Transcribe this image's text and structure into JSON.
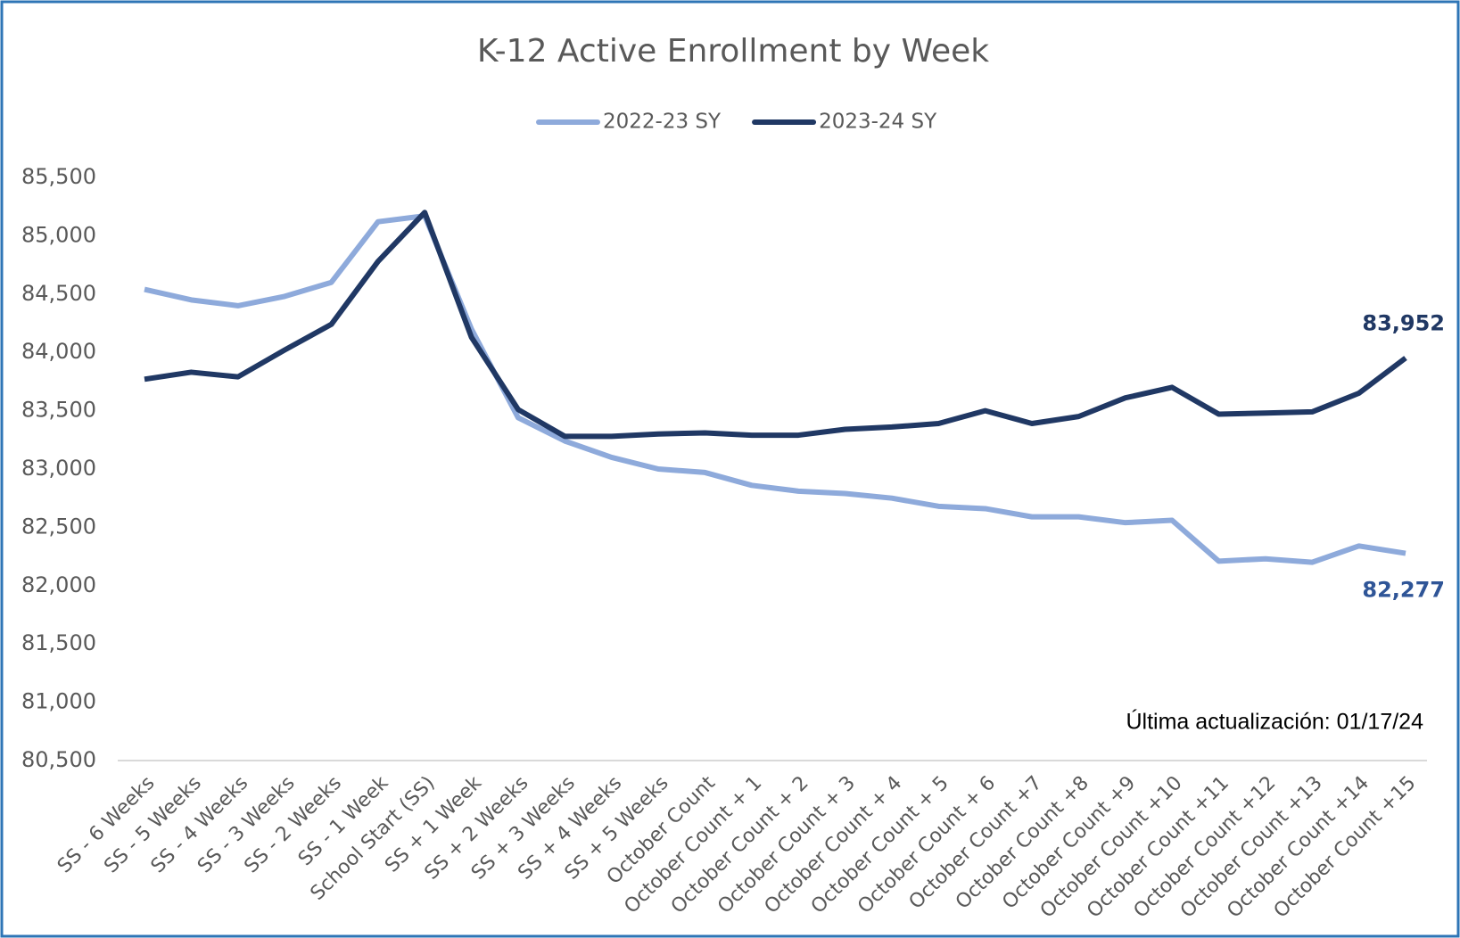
{
  "chart_data": {
    "type": "line",
    "title": "K-12 Active Enrollment by Week",
    "categories": [
      "SS - 6 Weeks",
      "SS - 5 Weeks",
      "SS - 4 Weeks",
      "SS - 3 Weeks",
      "SS - 2 Weeks",
      "SS - 1 Week",
      "School Start (SS)",
      "SS + 1 Week",
      "SS + 2 Weeks",
      "SS + 3 Weeks",
      "SS + 4 Weeks",
      "SS + 5 Weeks",
      "October Count",
      "October Count + 1",
      "October Count + 2",
      "October Count + 3",
      "October Count + 4",
      "October Count + 5",
      "October Count + 6",
      "October Count +7",
      "October Count +8",
      "October Count +9",
      "October Count +10",
      "October Count +11",
      "October Count +12",
      "October Count +13",
      "October Count +14",
      "October Count +15"
    ],
    "series": [
      {
        "name": "2022-23 SY",
        "color": "#8eaadb",
        "label_color": "#2f5597",
        "values": [
          84540,
          84450,
          84400,
          84480,
          84600,
          85120,
          85170,
          84200,
          83440,
          83240,
          83100,
          83000,
          82970,
          82860,
          82810,
          82790,
          82750,
          82680,
          82660,
          82590,
          82590,
          82540,
          82560,
          82210,
          82230,
          82200,
          82340,
          82277
        ],
        "value_labels": [
          null,
          null,
          null,
          null,
          null,
          null,
          null,
          null,
          null,
          null,
          null,
          null,
          null,
          null,
          null,
          null,
          null,
          null,
          null,
          null,
          null,
          null,
          null,
          null,
          null,
          null,
          null,
          "82,277"
        ]
      },
      {
        "name": "2023-24 SY",
        "color": "#203864",
        "label_color": "#203864",
        "values": [
          83770,
          83830,
          83790,
          84020,
          84240,
          84780,
          85200,
          84130,
          83510,
          83280,
          83280,
          83300,
          83310,
          83290,
          83290,
          83340,
          83360,
          83390,
          83500,
          83390,
          83450,
          83610,
          83700,
          83470,
          83480,
          83490,
          83650,
          83952
        ],
        "value_labels": [
          null,
          null,
          null,
          null,
          null,
          null,
          null,
          null,
          null,
          null,
          null,
          null,
          null,
          null,
          null,
          null,
          null,
          null,
          null,
          null,
          null,
          null,
          null,
          null,
          null,
          null,
          null,
          "83,952"
        ]
      }
    ],
    "ylim": [
      80500,
      85500
    ],
    "yticks": [
      {
        "value": 80500,
        "label": "80,500"
      },
      {
        "value": 81000,
        "label": "81,000"
      },
      {
        "value": 81500,
        "label": "81,500"
      },
      {
        "value": 82000,
        "label": "82,000"
      },
      {
        "value": 82500,
        "label": "82,500"
      },
      {
        "value": 83000,
        "label": "83,000"
      },
      {
        "value": 83500,
        "label": "83,500"
      },
      {
        "value": 84000,
        "label": "84,000"
      },
      {
        "value": 84500,
        "label": "84,500"
      },
      {
        "value": 85000,
        "label": "85,000"
      },
      {
        "value": 85500,
        "label": "85,500"
      }
    ],
    "grid": false,
    "legend": "top",
    "annotation": "Última actualización: 01/17/24"
  }
}
